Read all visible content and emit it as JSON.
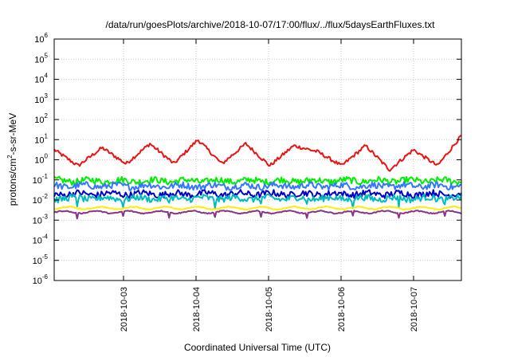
{
  "chart_data": {
    "type": "line",
    "title": "/data/run/goesPlots/archive/2018-10-07/17:00/flux/../flux/5daysEarthFluxes.txt",
    "xlabel": "Coordinated Universal Time (UTC)",
    "ylabel": {
      "prefix": "protons/cm",
      "sup": "2",
      "suffix": "-s-sr-MeV"
    },
    "y_scale": "log",
    "ylim": [
      1e-06,
      1000000.0
    ],
    "y_ticks": [
      {
        "value": -6,
        "base": "10",
        "exp": "-6"
      },
      {
        "value": -5,
        "base": "10",
        "exp": "-5"
      },
      {
        "value": -4,
        "base": "10",
        "exp": "-4"
      },
      {
        "value": -3,
        "base": "10",
        "exp": "-3"
      },
      {
        "value": -2,
        "base": "10",
        "exp": "-2"
      },
      {
        "value": -1,
        "base": "10",
        "exp": "-1"
      },
      {
        "value": 0,
        "base": "10",
        "exp": "0"
      },
      {
        "value": 1,
        "base": "10",
        "exp": "1"
      },
      {
        "value": 2,
        "base": "10",
        "exp": "2"
      },
      {
        "value": 3,
        "base": "10",
        "exp": "3"
      },
      {
        "value": 4,
        "base": "10",
        "exp": "4"
      },
      {
        "value": 5,
        "base": "10",
        "exp": "5"
      },
      {
        "value": 6,
        "base": "10",
        "exp": "6"
      }
    ],
    "xlim": [
      "2018-10-02 02:00",
      "2018-10-07 17:00"
    ],
    "x_ticks": [
      "2018-10-03",
      "2018-10-04",
      "2018-10-05",
      "2018-10-06",
      "2018-10-07"
    ],
    "grid": true,
    "series": [
      {
        "color": "#ee1111",
        "style": "diurnal-high",
        "log_levels": [
          0.5,
          -0.3,
          0.6,
          -0.2,
          0.8,
          -0.2,
          1.0,
          -0.2,
          0.8,
          -0.3,
          0.7,
          0.4,
          -0.3,
          0.7,
          -0.5,
          0.5,
          -0.3,
          1.2
        ]
      },
      {
        "color": "#00ee00",
        "style": "noisy",
        "median": 0.09
      },
      {
        "color": "#3377ff",
        "style": "noisy",
        "median": 0.05
      },
      {
        "color": "#0000cc",
        "style": "noisy",
        "median": 0.02
      },
      {
        "color": "#00bbbb",
        "style": "noisy-dips",
        "median": 0.012
      },
      {
        "color": "#ffee00",
        "style": "flat",
        "median": 0.004
      },
      {
        "color": "#883388",
        "style": "flat-dips",
        "median": 0.0025
      }
    ]
  }
}
